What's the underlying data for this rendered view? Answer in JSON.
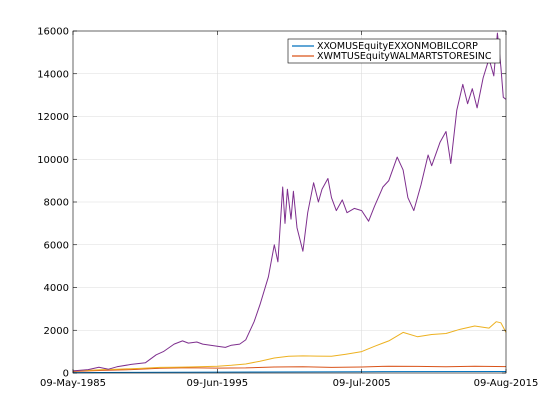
{
  "chart_data": {
    "type": "line",
    "x_tick_labels": [
      "09-May-1985",
      "09-Jun-1995",
      "09-Jul-2005",
      "09-Aug-2015"
    ],
    "x_range": [
      "1985-05-09",
      "2015-08-09"
    ],
    "ylim": [
      0,
      16000
    ],
    "y_ticks": [
      0,
      2000,
      4000,
      6000,
      8000,
      10000,
      12000,
      14000,
      16000
    ],
    "grid": true,
    "legend_position": "top-right",
    "legend": [
      {
        "label": "XXOMUSEquityEXXONMOBILCORP",
        "color": "#0072bd"
      },
      {
        "label": "XWMTUSEquityWALMARTSTORESINC",
        "color": "#d95319"
      }
    ],
    "series": [
      {
        "name": "XXOMUSEquityEXXONMOBILCORP",
        "color": "#0072bd",
        "points": [
          [
            "1985-05-09",
            20
          ],
          [
            "1995-06-09",
            40
          ],
          [
            "2005-07-09",
            60
          ],
          [
            "2015-08-09",
            70
          ]
        ]
      },
      {
        "name": "XWMTUSEquityWALMARTSTORESINC",
        "color": "#d95319",
        "points": [
          [
            "1985-05-09",
            70
          ],
          [
            "1987-06-01",
            120
          ],
          [
            "1989-06-01",
            160
          ],
          [
            "1991-06-01",
            220
          ],
          [
            "1993-06-01",
            250
          ],
          [
            "1995-06-09",
            230
          ],
          [
            "1997-06-01",
            240
          ],
          [
            "1999-06-01",
            280
          ],
          [
            "2001-06-01",
            290
          ],
          [
            "2003-06-01",
            260
          ],
          [
            "2005-07-09",
            280
          ],
          [
            "2007-06-01",
            320
          ],
          [
            "2009-06-01",
            310
          ],
          [
            "2011-06-01",
            290
          ],
          [
            "2013-06-01",
            320
          ],
          [
            "2015-08-09",
            300
          ]
        ]
      },
      {
        "name": "",
        "color": "#edb120",
        "points": [
          [
            "1985-05-09",
            100
          ],
          [
            "1986-06-01",
            120
          ],
          [
            "1987-06-01",
            160
          ],
          [
            "1988-06-01",
            180
          ],
          [
            "1989-06-01",
            200
          ],
          [
            "1990-06-01",
            230
          ],
          [
            "1991-06-01",
            260
          ],
          [
            "1992-06-01",
            270
          ],
          [
            "1993-06-01",
            280
          ],
          [
            "1994-06-01",
            300
          ],
          [
            "1995-06-09",
            320
          ],
          [
            "1996-06-01",
            360
          ],
          [
            "1997-06-01",
            420
          ],
          [
            "1998-06-01",
            550
          ],
          [
            "1999-06-01",
            700
          ],
          [
            "2000-06-01",
            780
          ],
          [
            "2001-06-01",
            800
          ],
          [
            "2002-06-01",
            790
          ],
          [
            "2003-06-01",
            780
          ],
          [
            "2004-06-01",
            880
          ],
          [
            "2005-07-09",
            1000
          ],
          [
            "2006-06-01",
            1250
          ],
          [
            "2007-06-01",
            1500
          ],
          [
            "2008-06-01",
            1900
          ],
          [
            "2009-06-01",
            1700
          ],
          [
            "2010-06-01",
            1800
          ],
          [
            "2011-06-01",
            1850
          ],
          [
            "2012-06-01",
            2050
          ],
          [
            "2013-06-01",
            2200
          ],
          [
            "2014-06-01",
            2100
          ],
          [
            "2014-12-01",
            2400
          ],
          [
            "2015-04-01",
            2350
          ],
          [
            "2015-08-09",
            1900
          ]
        ]
      },
      {
        "name": "",
        "color": "#7e2f8e",
        "points": [
          [
            "1985-05-09",
            100
          ],
          [
            "1986-06-01",
            160
          ],
          [
            "1987-03-01",
            270
          ],
          [
            "1987-11-01",
            180
          ],
          [
            "1988-06-01",
            290
          ],
          [
            "1989-06-01",
            400
          ],
          [
            "1990-06-01",
            480
          ],
          [
            "1991-03-01",
            850
          ],
          [
            "1991-09-01",
            1000
          ],
          [
            "1992-06-01",
            1350
          ],
          [
            "1993-01-01",
            1500
          ],
          [
            "1993-06-01",
            1400
          ],
          [
            "1994-01-01",
            1450
          ],
          [
            "1994-06-01",
            1350
          ],
          [
            "1995-06-09",
            1250
          ],
          [
            "1996-01-01",
            1200
          ],
          [
            "1996-06-01",
            1300
          ],
          [
            "1997-01-01",
            1350
          ],
          [
            "1997-06-01",
            1550
          ],
          [
            "1998-01-01",
            2400
          ],
          [
            "1998-06-01",
            3200
          ],
          [
            "1999-01-01",
            4500
          ],
          [
            "1999-06-01",
            6000
          ],
          [
            "1999-09-01",
            5200
          ],
          [
            "2000-01-01",
            8700
          ],
          [
            "2000-03-01",
            7000
          ],
          [
            "2000-05-01",
            8600
          ],
          [
            "2000-08-01",
            7200
          ],
          [
            "2000-10-01",
            8500
          ],
          [
            "2001-01-01",
            6800
          ],
          [
            "2001-06-01",
            5700
          ],
          [
            "2001-10-01",
            7500
          ],
          [
            "2002-03-01",
            8900
          ],
          [
            "2002-07-01",
            8000
          ],
          [
            "2002-10-01",
            8600
          ],
          [
            "2003-03-01",
            9100
          ],
          [
            "2003-06-01",
            8200
          ],
          [
            "2003-10-01",
            7600
          ],
          [
            "2004-03-01",
            8100
          ],
          [
            "2004-07-01",
            7500
          ],
          [
            "2005-01-01",
            7700
          ],
          [
            "2005-07-09",
            7600
          ],
          [
            "2006-01-01",
            7100
          ],
          [
            "2006-06-01",
            7800
          ],
          [
            "2007-01-01",
            8700
          ],
          [
            "2007-06-01",
            9000
          ],
          [
            "2008-01-01",
            10100
          ],
          [
            "2008-06-01",
            9500
          ],
          [
            "2008-10-01",
            8200
          ],
          [
            "2009-03-01",
            7600
          ],
          [
            "2009-09-01",
            8800
          ],
          [
            "2010-03-01",
            10200
          ],
          [
            "2010-06-01",
            9700
          ],
          [
            "2011-01-01",
            10800
          ],
          [
            "2011-06-01",
            11300
          ],
          [
            "2011-10-01",
            9800
          ],
          [
            "2012-03-01",
            12300
          ],
          [
            "2012-08-01",
            13500
          ],
          [
            "2012-12-01",
            12600
          ],
          [
            "2013-04-01",
            13300
          ],
          [
            "2013-08-01",
            12400
          ],
          [
            "2014-01-01",
            13800
          ],
          [
            "2014-06-01",
            14700
          ],
          [
            "2014-10-01",
            13900
          ],
          [
            "2015-01-01",
            15900
          ],
          [
            "2015-04-01",
            14300
          ],
          [
            "2015-06-01",
            12900
          ],
          [
            "2015-08-09",
            12800
          ]
        ]
      }
    ]
  }
}
